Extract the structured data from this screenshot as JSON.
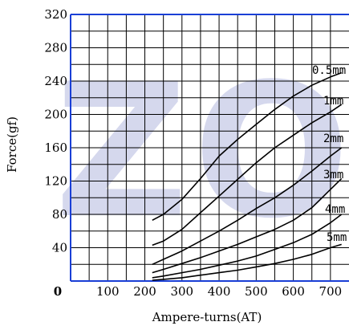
{
  "chart_data": {
    "type": "line",
    "xlabel": "Ampere-turns(AT)",
    "ylabel": "Force(gf)",
    "xlim": [
      0,
      750
    ],
    "ylim": [
      0,
      320
    ],
    "x_ticks": [
      0,
      100,
      200,
      300,
      400,
      500,
      600,
      700
    ],
    "y_ticks": [
      0,
      40,
      80,
      120,
      160,
      200,
      240,
      280,
      320
    ],
    "grid": true,
    "series": [
      {
        "name": "0.5mm",
        "x": [
          220,
          250,
          300,
          350,
          400,
          450,
          500,
          550,
          600,
          650,
          700,
          730
        ],
        "y": [
          73,
          80,
          98,
          123,
          150,
          170,
          188,
          206,
          222,
          235,
          245,
          250
        ]
      },
      {
        "name": "1mm",
        "x": [
          220,
          250,
          300,
          350,
          400,
          450,
          500,
          550,
          600,
          650,
          700,
          730
        ],
        "y": [
          43,
          48,
          62,
          82,
          102,
          122,
          142,
          160,
          175,
          190,
          203,
          212
        ]
      },
      {
        "name": "2mm",
        "x": [
          220,
          250,
          300,
          350,
          400,
          450,
          500,
          550,
          600,
          650,
          700,
          730
        ],
        "y": [
          20,
          26,
          36,
          48,
          60,
          73,
          87,
          100,
          115,
          132,
          150,
          160
        ]
      },
      {
        "name": "3mm",
        "x": [
          220,
          250,
          300,
          350,
          400,
          450,
          500,
          550,
          600,
          650,
          700,
          730
        ],
        "y": [
          10,
          14,
          21,
          28,
          36,
          44,
          53,
          62,
          73,
          88,
          110,
          123
        ]
      },
      {
        "name": "4mm",
        "x": [
          220,
          250,
          300,
          350,
          400,
          450,
          500,
          550,
          600,
          650,
          700,
          730
        ],
        "y": [
          4,
          6,
          10,
          14,
          19,
          24,
          30,
          38,
          46,
          56,
          70,
          80
        ]
      },
      {
        "name": "5mm",
        "x": [
          220,
          250,
          300,
          350,
          400,
          450,
          500,
          550,
          600,
          650,
          700,
          730
        ],
        "y": [
          1,
          2,
          4,
          7,
          10,
          13,
          17,
          21,
          26,
          32,
          40,
          44
        ]
      }
    ],
    "colors": {
      "grid": "#000000",
      "frame": "#1a3fd6",
      "line": "#000000",
      "watermark": "#c8cbe8"
    },
    "watermark_text": "ZO"
  }
}
